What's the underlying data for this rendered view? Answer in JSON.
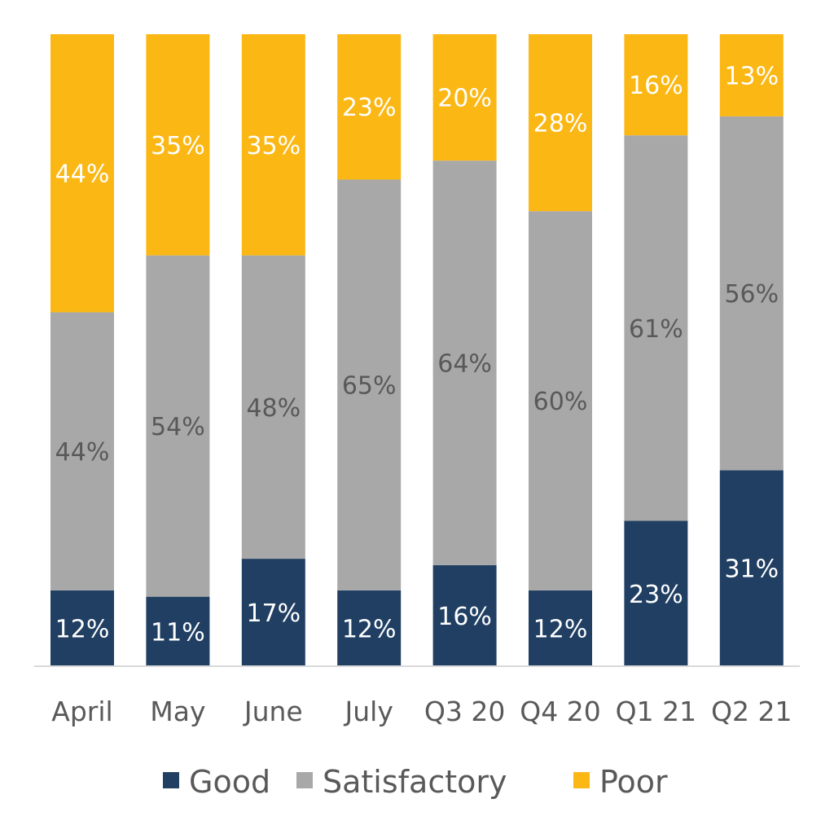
{
  "chart_data": {
    "type": "bar",
    "stacked": true,
    "normalized": true,
    "categories": [
      "April",
      "May",
      "June",
      "July",
      "Q3 20",
      "Q4 20",
      "Q1 21",
      "Q2 21"
    ],
    "series": [
      {
        "name": "Good",
        "color": "#203f63",
        "label_color": "#ffffff",
        "values": [
          12,
          11,
          17,
          12,
          16,
          12,
          23,
          31
        ]
      },
      {
        "name": "Satisfactory",
        "color": "#a8a8a8",
        "label_color": "#595959",
        "values": [
          44,
          54,
          48,
          65,
          64,
          60,
          61,
          56
        ]
      },
      {
        "name": "Poor",
        "color": "#fbb714",
        "label_color": "#ffffff",
        "values": [
          44,
          35,
          35,
          23,
          20,
          28,
          16,
          13
        ]
      }
    ],
    "value_suffix": "%",
    "grid": false,
    "legend": "bottom"
  }
}
